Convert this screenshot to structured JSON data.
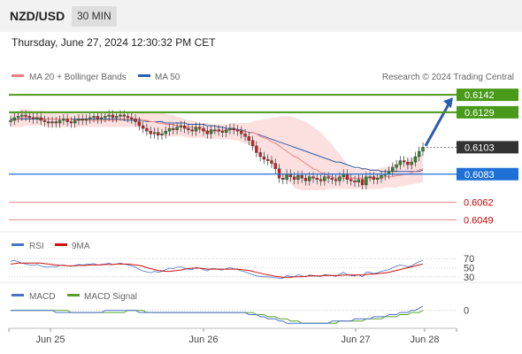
{
  "header": {
    "pair": "NZD/USD",
    "timeframe": "30 MIN"
  },
  "datetime": "Thursday, June 27, 2024 12:30:32 PM CET",
  "legend": {
    "ma20": "MA 20 + Bollinger Bands",
    "ma50": "MA 50",
    "copyright": "Research © 2024 Trading Central",
    "rsi": "RSI",
    "rsi_ma": "9MA",
    "macd": "MACD",
    "macd_signal": "MACD Signal"
  },
  "colors": {
    "ma20": "#f08080",
    "ma50": "#2f5fa8",
    "resistance": "#4a9a1a",
    "pivot": "#1e6fd6",
    "support": "#e88a8a",
    "support_text": "#cc0000",
    "current": "#333333",
    "bull": "#2a8a2a",
    "bear": "#cc2222",
    "bollinger": "#fbd7d7",
    "rsi": "#4a72c8",
    "rsi_ma": "#cc1111",
    "macd": "#4a72c8",
    "macd_signal": "#5aa02c"
  },
  "chart_data": [
    {
      "type": "candlestick",
      "title": "NZD/USD",
      "x_ticks": [
        "Jun 25",
        "Jun 26",
        "Jun 27",
        "Jun 28"
      ],
      "ylim": [
        0.6044,
        0.6148
      ],
      "levels": [
        {
          "name": "resistance-2",
          "value": 0.6142,
          "label": "0.6142",
          "kind": "resistance"
        },
        {
          "name": "resistance-1",
          "value": 0.6129,
          "label": "0.6129",
          "kind": "resistance"
        },
        {
          "name": "current-price",
          "value": 0.6103,
          "label": "0.6103",
          "kind": "current"
        },
        {
          "name": "pivot",
          "value": 0.6083,
          "label": "0.6083",
          "kind": "pivot"
        },
        {
          "name": "support-1",
          "value": 0.6062,
          "label": "0.6062",
          "kind": "support"
        },
        {
          "name": "support-2",
          "value": 0.6049,
          "label": "0.6049",
          "kind": "support"
        }
      ],
      "close": [
        0.6123,
        0.6125,
        0.6126,
        0.6127,
        0.6126,
        0.6125,
        0.6124,
        0.6125,
        0.6123,
        0.6122,
        0.6121,
        0.6122,
        0.6121,
        0.6123,
        0.6124,
        0.6122,
        0.6121,
        0.6123,
        0.6124,
        0.6123,
        0.6124,
        0.6125,
        0.6126,
        0.6124,
        0.6125,
        0.6126,
        0.6127,
        0.6125,
        0.6126,
        0.6127,
        0.6126,
        0.6125,
        0.6124,
        0.6122,
        0.6119,
        0.6117,
        0.6115,
        0.6113,
        0.6114,
        0.6112,
        0.6113,
        0.6115,
        0.6117,
        0.6116,
        0.6118,
        0.6119,
        0.6117,
        0.6116,
        0.6115,
        0.6118,
        0.6117,
        0.6115,
        0.6113,
        0.6116,
        0.6116,
        0.6115,
        0.6114,
        0.6116,
        0.6117,
        0.6116,
        0.6115,
        0.6113,
        0.6111,
        0.6108,
        0.6104,
        0.6099,
        0.6096,
        0.6094,
        0.6093,
        0.6091,
        0.6087,
        0.608,
        0.6079,
        0.6083,
        0.6081,
        0.6079,
        0.6082,
        0.608,
        0.6078,
        0.6081,
        0.608,
        0.6079,
        0.6078,
        0.6081,
        0.608,
        0.6079,
        0.6078,
        0.6081,
        0.6083,
        0.6079,
        0.6078,
        0.6077,
        0.6079,
        0.6075,
        0.6081,
        0.6081,
        0.6079,
        0.608,
        0.6082,
        0.6083,
        0.6085,
        0.6088,
        0.609,
        0.6093,
        0.6092,
        0.609,
        0.6092,
        0.6096,
        0.61,
        0.6103
      ],
      "ma20": [
        0.6123,
        0.6123,
        0.6124,
        0.6125,
        0.6125,
        0.6125,
        0.6125,
        0.6125,
        0.6125,
        0.6124,
        0.6124,
        0.6124,
        0.6124,
        0.6124,
        0.6124,
        0.6124,
        0.6124,
        0.6123,
        0.6123,
        0.6124,
        0.6123,
        0.6123,
        0.6123,
        0.6123,
        0.6123,
        0.6123,
        0.6123,
        0.6123,
        0.6123,
        0.6124,
        0.6124,
        0.6124,
        0.6124,
        0.6124,
        0.6124,
        0.6123,
        0.6123,
        0.6122,
        0.6122,
        0.6121,
        0.6121,
        0.612,
        0.612,
        0.612,
        0.6119,
        0.6119,
        0.6118,
        0.6118,
        0.6118,
        0.6117,
        0.6116,
        0.6116,
        0.6115,
        0.6115,
        0.6115,
        0.6115,
        0.6116,
        0.6115,
        0.6116,
        0.6116,
        0.6116,
        0.6115,
        0.6115,
        0.6114,
        0.6114,
        0.6113,
        0.6111,
        0.611,
        0.6109,
        0.6107,
        0.6106,
        0.6104,
        0.6102,
        0.61,
        0.6098,
        0.6096,
        0.6095,
        0.6093,
        0.6091,
        0.6089,
        0.6087,
        0.6086,
        0.6084,
        0.6083,
        0.6082,
        0.6081,
        0.608,
        0.608,
        0.608,
        0.608,
        0.608,
        0.608,
        0.608,
        0.608,
        0.608,
        0.608,
        0.608,
        0.608,
        0.608,
        0.6081,
        0.6081,
        0.6081,
        0.6082,
        0.6082,
        0.6083,
        0.6083,
        0.6084,
        0.6085,
        0.6086,
        0.6087
      ],
      "ma50": [
        0.6124,
        0.6124,
        0.6124,
        0.6124,
        0.6124,
        0.6124,
        0.6124,
        0.6124,
        0.6124,
        0.6124,
        0.6124,
        0.6124,
        0.6124,
        0.6124,
        0.6124,
        0.6124,
        0.6124,
        0.6124,
        0.6124,
        0.6124,
        0.6124,
        0.6124,
        0.6124,
        0.6124,
        0.6124,
        0.6124,
        0.6124,
        0.6124,
        0.6124,
        0.6124,
        0.6123,
        0.6123,
        0.6123,
        0.6123,
        0.6123,
        0.6123,
        0.6122,
        0.6122,
        0.6122,
        0.6122,
        0.6122,
        0.6121,
        0.6121,
        0.6121,
        0.6121,
        0.6121,
        0.6121,
        0.612,
        0.612,
        0.612,
        0.612,
        0.612,
        0.6119,
        0.6119,
        0.6119,
        0.6118,
        0.6118,
        0.6117,
        0.6117,
        0.6117,
        0.6116,
        0.6116,
        0.6115,
        0.6114,
        0.6114,
        0.6113,
        0.6112,
        0.6111,
        0.611,
        0.6109,
        0.6108,
        0.6107,
        0.6106,
        0.6105,
        0.6104,
        0.6103,
        0.6102,
        0.6101,
        0.61,
        0.6099,
        0.6098,
        0.6097,
        0.6096,
        0.6095,
        0.6094,
        0.6093,
        0.6092,
        0.6092,
        0.6091,
        0.609,
        0.6089,
        0.6088,
        0.6088,
        0.6087,
        0.6087,
        0.6086,
        0.6086,
        0.6086,
        0.6085,
        0.6085,
        0.6085,
        0.6085,
        0.6085,
        0.6085,
        0.6085,
        0.6085,
        0.6085,
        0.6085,
        0.6085,
        0.6086
      ],
      "bb_upper": [
        0.6129,
        0.6129,
        0.613,
        0.6131,
        0.6131,
        0.6131,
        0.613,
        0.613,
        0.613,
        0.613,
        0.6129,
        0.6129,
        0.6129,
        0.6129,
        0.6129,
        0.6129,
        0.6128,
        0.6128,
        0.6128,
        0.6128,
        0.6128,
        0.6127,
        0.6127,
        0.6128,
        0.6128,
        0.6128,
        0.6128,
        0.6128,
        0.6128,
        0.6128,
        0.6128,
        0.6128,
        0.6129,
        0.6129,
        0.6129,
        0.6129,
        0.6129,
        0.6129,
        0.6129,
        0.6129,
        0.6129,
        0.6128,
        0.6127,
        0.6127,
        0.6126,
        0.6125,
        0.6124,
        0.6123,
        0.6123,
        0.6122,
        0.6121,
        0.6121,
        0.6121,
        0.612,
        0.612,
        0.612,
        0.612,
        0.612,
        0.6121,
        0.6121,
        0.6121,
        0.6121,
        0.6121,
        0.6121,
        0.6122,
        0.6123,
        0.6123,
        0.6124,
        0.6124,
        0.6125,
        0.6125,
        0.6126,
        0.6126,
        0.6126,
        0.6126,
        0.6125,
        0.6124,
        0.6123,
        0.6122,
        0.612,
        0.6118,
        0.6116,
        0.6114,
        0.6111,
        0.6108,
        0.6105,
        0.6101,
        0.6098,
        0.6094,
        0.609,
        0.6088,
        0.6087,
        0.6087,
        0.6087,
        0.6087,
        0.6087,
        0.6087,
        0.6087,
        0.6088,
        0.6088,
        0.6089,
        0.609,
        0.6091,
        0.6092,
        0.6093,
        0.6094,
        0.6095,
        0.6096,
        0.6097,
        0.6098
      ],
      "bb_lower": [
        0.6118,
        0.6118,
        0.6118,
        0.6118,
        0.6119,
        0.6119,
        0.6119,
        0.6119,
        0.6119,
        0.6119,
        0.6118,
        0.6118,
        0.6118,
        0.6118,
        0.6118,
        0.6118,
        0.6118,
        0.6118,
        0.6118,
        0.6118,
        0.6118,
        0.6118,
        0.6118,
        0.6118,
        0.6118,
        0.6118,
        0.6118,
        0.6118,
        0.6118,
        0.6118,
        0.6118,
        0.6118,
        0.6118,
        0.6118,
        0.6118,
        0.6117,
        0.6116,
        0.6115,
        0.6114,
        0.6113,
        0.6112,
        0.6111,
        0.6111,
        0.6111,
        0.6111,
        0.6111,
        0.6111,
        0.611,
        0.611,
        0.611,
        0.611,
        0.611,
        0.6109,
        0.6109,
        0.6109,
        0.6109,
        0.6109,
        0.6109,
        0.6109,
        0.6108,
        0.6108,
        0.6107,
        0.6106,
        0.6105,
        0.6103,
        0.6101,
        0.6099,
        0.6097,
        0.6094,
        0.6091,
        0.6088,
        0.6084,
        0.6081,
        0.6078,
        0.6076,
        0.6073,
        0.6072,
        0.6071,
        0.6071,
        0.6071,
        0.6071,
        0.6071,
        0.6071,
        0.6071,
        0.6072,
        0.6072,
        0.6072,
        0.6072,
        0.6072,
        0.6072,
        0.6072,
        0.6072,
        0.6072,
        0.6072,
        0.6072,
        0.6072,
        0.6072,
        0.6072,
        0.6072,
        0.6073,
        0.6073,
        0.6073,
        0.6073,
        0.6074,
        0.6074,
        0.6075,
        0.6075,
        0.6076,
        0.6076,
        0.6077
      ],
      "projection": {
        "from": 0.6104,
        "to": 0.614
      }
    },
    {
      "type": "line",
      "title": "RSI",
      "y_ticks": [
        "70",
        "50",
        "30"
      ],
      "ylim": [
        20,
        80
      ],
      "series": [
        {
          "name": "RSI",
          "values": [
            64,
            66,
            63,
            60,
            58,
            56,
            55,
            57,
            54,
            52,
            51,
            53,
            52,
            55,
            56,
            54,
            53,
            55,
            57,
            56,
            57,
            58,
            59,
            56,
            57,
            58,
            60,
            57,
            58,
            60,
            58,
            56,
            54,
            51,
            46,
            43,
            41,
            39,
            42,
            40,
            42,
            46,
            49,
            48,
            51,
            52,
            49,
            47,
            46,
            51,
            49,
            46,
            43,
            48,
            48,
            46,
            45,
            48,
            50,
            48,
            46,
            43,
            41,
            38,
            35,
            32,
            31,
            30,
            30,
            29,
            28,
            27,
            27,
            33,
            31,
            30,
            35,
            32,
            30,
            34,
            33,
            32,
            31,
            35,
            34,
            33,
            31,
            36,
            40,
            35,
            33,
            32,
            35,
            30,
            40,
            40,
            37,
            39,
            42,
            44,
            46,
            50,
            53,
            56,
            54,
            52,
            54,
            59,
            63,
            66
          ]
        },
        {
          "name": "9MA",
          "values": [
            58,
            59,
            60,
            60,
            60,
            60,
            60,
            60,
            60,
            59,
            58,
            57,
            56,
            55,
            55,
            54,
            54,
            54,
            55,
            55,
            55,
            56,
            56,
            56,
            56,
            57,
            57,
            57,
            58,
            58,
            58,
            58,
            57,
            56,
            55,
            53,
            50,
            48,
            46,
            44,
            43,
            42,
            42,
            43,
            44,
            45,
            47,
            48,
            49,
            49,
            49,
            48,
            47,
            47,
            47,
            47,
            47,
            47,
            47,
            47,
            47,
            46,
            45,
            44,
            42,
            40,
            38,
            36,
            34,
            33,
            31,
            30,
            29,
            29,
            29,
            30,
            30,
            30,
            31,
            32,
            32,
            32,
            32,
            33,
            33,
            33,
            33,
            33,
            34,
            34,
            34,
            34,
            34,
            34,
            35,
            36,
            36,
            37,
            38,
            39,
            40,
            42,
            44,
            46,
            48,
            50,
            52,
            54,
            56,
            58
          ]
        }
      ]
    },
    {
      "type": "line",
      "title": "MACD",
      "y_ticks": [
        "0"
      ],
      "ylim": [
        -0.0008,
        0.0004
      ],
      "series": [
        {
          "name": "MACD",
          "values": [
            0.0,
            0.0,
            0.0,
            0.0,
            0.0,
            0.0,
            0.0,
            0.0,
            0.0,
            0.0,
            -0.0,
            -0.0,
            -0.0001,
            -0.0001,
            -0.0001,
            -0.0001,
            -0.0001,
            -0.0001,
            -0.0001,
            -0.0001,
            -0.0001,
            -0.0001,
            -0.0001,
            -0.0001,
            -0.0001,
            -0.0,
            -0.0,
            -0.0,
            -0.0,
            -0.0,
            -0.0,
            -0.0,
            -0.0,
            -0.0,
            -0.0001,
            -0.0001,
            -0.0001,
            -0.0001,
            -0.0001,
            -0.0001,
            -0.0001,
            -0.0001,
            -0.0001,
            -0.0001,
            -0.0001,
            -0.0001,
            -0.0001,
            -0.0001,
            -0.0001,
            -0.0001,
            -0.0001,
            -0.0001,
            -0.0001,
            -0.0001,
            -0.0001,
            -0.0001,
            -0.0001,
            -0.0001,
            -0.0001,
            -0.0001,
            -0.0001,
            -0.0001,
            -0.0001,
            -0.0002,
            -0.0002,
            -0.0002,
            -0.0003,
            -0.0003,
            -0.0004,
            -0.0004,
            -0.0004,
            -0.0005,
            -0.0005,
            -0.0006,
            -0.0006,
            -0.0006,
            -0.0006,
            -0.0006,
            -0.0006,
            -0.0006,
            -0.0006,
            -0.0006,
            -0.0006,
            -0.0006,
            -0.0006,
            -0.0005,
            -0.0005,
            -0.0005,
            -0.0005,
            -0.0005,
            -0.0005,
            -0.0004,
            -0.0004,
            -0.0004,
            -0.0004,
            -0.0004,
            -0.0003,
            -0.0003,
            -0.0003,
            -0.0003,
            -0.0002,
            -0.0002,
            -0.0002,
            -0.0001,
            -0.0001,
            -0.0001,
            -0.0,
            0.0,
            0.0001,
            0.0002
          ]
        },
        {
          "name": "MACD Signal",
          "values": [
            0.0,
            0.0,
            0.0,
            0.0,
            0.0,
            0.0,
            0.0,
            0.0,
            0.0,
            0.0,
            0.0,
            0.0,
            -0.0,
            -0.0,
            -0.0,
            -0.0,
            -0.0001,
            -0.0001,
            -0.0001,
            -0.0001,
            -0.0001,
            -0.0001,
            -0.0001,
            -0.0001,
            -0.0001,
            -0.0001,
            -0.0001,
            -0.0001,
            -0.0001,
            -0.0001,
            -0.0001,
            -0.0,
            -0.0,
            -0.0,
            -0.0,
            -0.0,
            -0.0001,
            -0.0001,
            -0.0001,
            -0.0001,
            -0.0001,
            -0.0001,
            -0.0001,
            -0.0001,
            -0.0001,
            -0.0001,
            -0.0001,
            -0.0001,
            -0.0001,
            -0.0001,
            -0.0001,
            -0.0001,
            -0.0001,
            -0.0001,
            -0.0001,
            -0.0001,
            -0.0001,
            -0.0001,
            -0.0001,
            -0.0001,
            -0.0001,
            -0.0001,
            -0.0001,
            -0.0001,
            -0.0001,
            -0.0002,
            -0.0002,
            -0.0002,
            -0.0003,
            -0.0003,
            -0.0003,
            -0.0004,
            -0.0004,
            -0.0004,
            -0.0005,
            -0.0005,
            -0.0005,
            -0.0006,
            -0.0006,
            -0.0006,
            -0.0006,
            -0.0006,
            -0.0006,
            -0.0006,
            -0.0006,
            -0.0006,
            -0.0006,
            -0.0005,
            -0.0005,
            -0.0005,
            -0.0005,
            -0.0005,
            -0.0005,
            -0.0005,
            -0.0004,
            -0.0004,
            -0.0004,
            -0.0004,
            -0.0004,
            -0.0003,
            -0.0003,
            -0.0003,
            -0.0003,
            -0.0002,
            -0.0002,
            -0.0002,
            -0.0001,
            -0.0001,
            -0.0001,
            -0.0
          ]
        }
      ]
    }
  ]
}
